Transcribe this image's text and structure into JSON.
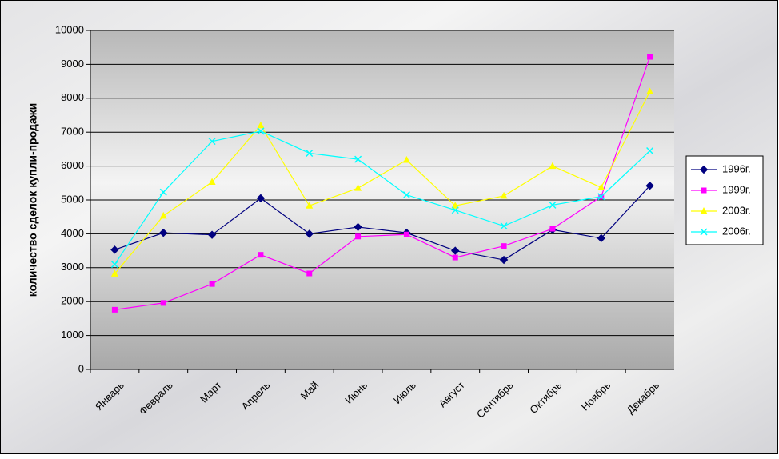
{
  "chart_data": {
    "type": "line",
    "y_label": "количество сделок купли-продажи",
    "categories": [
      "Январь",
      "Февраль",
      "Март",
      "Апрель",
      "Май",
      "Июнь",
      "Июль",
      "Август",
      "Сентябрь",
      "Октябрь",
      "Ноябрь",
      "Декабрь"
    ],
    "series": [
      {
        "name": "1996г.",
        "color": "#000080",
        "marker": "diamond",
        "values": [
          3530,
          4030,
          3970,
          5050,
          4000,
          4200,
          4030,
          3500,
          3230,
          4120,
          3870,
          5420
        ]
      },
      {
        "name": "1999г.",
        "color": "#ff00ff",
        "marker": "square",
        "values": [
          1760,
          1960,
          2520,
          3380,
          2830,
          3920,
          3980,
          3300,
          3640,
          4150,
          5100,
          9220
        ]
      },
      {
        "name": "2003г.",
        "color": "#ffff00",
        "marker": "triangle",
        "values": [
          2820,
          4530,
          5530,
          7200,
          4830,
          5350,
          6180,
          4830,
          5120,
          6000,
          5370,
          8200
        ]
      },
      {
        "name": "2006г.",
        "color": "#00ffff",
        "marker": "x",
        "values": [
          3100,
          5230,
          6730,
          7030,
          6380,
          6200,
          5150,
          4700,
          4230,
          4850,
          5100,
          6450
        ]
      }
    ],
    "ylim": [
      0,
      10000
    ],
    "yticks": [
      0,
      1000,
      2000,
      3000,
      4000,
      5000,
      6000,
      7000,
      8000,
      9000,
      10000
    ],
    "grid": true,
    "legend": "right"
  }
}
